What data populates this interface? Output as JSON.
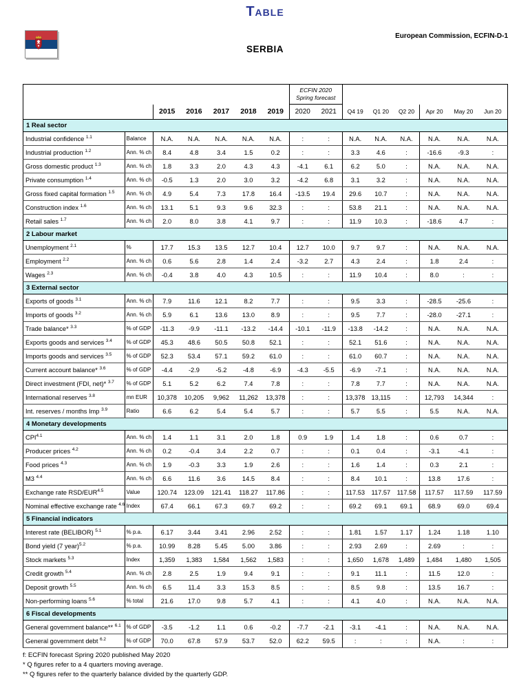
{
  "header": {
    "page_title": "TABLE",
    "organization": "European Commission, ECFIN-D-1",
    "country": "SERBIA"
  },
  "colors": {
    "title_blue": "#2B3896",
    "section_band": "#CCF2F3",
    "flag_red": "#C6363D",
    "flag_blue": "#12457E",
    "flag_white": "#FFFFFF"
  },
  "table": {
    "forecast_box": {
      "line1": "ECFIN 2020",
      "line2": "Spring forecast"
    },
    "columns": {
      "years": [
        "2015",
        "2016",
        "2017",
        "2018",
        "2019"
      ],
      "forecast_years": [
        "2020",
        "2021"
      ],
      "quarters": [
        "Q4 19",
        "Q1 20",
        "Q2 20"
      ],
      "months": [
        "Apr 20",
        "May 20",
        "Jun 20"
      ]
    },
    "sections": [
      {
        "title": "1  Real sector",
        "rows": [
          {
            "label": "Industrial confidence ",
            "sup": "1.1",
            "unit": "Balance",
            "values": [
              "N.A.",
              "N.A.",
              "N.A.",
              "N.A.",
              "N.A.",
              ":",
              ":",
              "N.A.",
              "N.A.",
              "N.A.",
              "N.A.",
              "N.A.",
              "N.A."
            ]
          },
          {
            "label": "Industrial production ",
            "sup": "1.2",
            "unit": "Ann. % ch",
            "values": [
              "8.4",
              "4.8",
              "3.4",
              "1.5",
              "0.2",
              ":",
              ":",
              "3.3",
              "4.6",
              ":",
              "-16.6",
              "-9.3",
              ":"
            ]
          },
          {
            "label": "Gross domestic product ",
            "sup": "1.3",
            "unit": "Ann. % ch",
            "values": [
              "1.8",
              "3.3",
              "2.0",
              "4.3",
              "4.3",
              "-4.1",
              "6.1",
              "6.2",
              "5.0",
              ":",
              "N.A.",
              "N.A.",
              "N.A."
            ]
          },
          {
            "label": "Private consumption ",
            "sup": "1.4",
            "unit": "Ann. % ch",
            "values": [
              "-0.5",
              "1.3",
              "2.0",
              "3.0",
              "3.2",
              "-4.2",
              "6.8",
              "3.1",
              "3.2",
              ":",
              "N.A.",
              "N.A.",
              "N.A."
            ]
          },
          {
            "label": "Gross fixed capital formation ",
            "sup": "1.5",
            "unit": "Ann. % ch",
            "values": [
              "4.9",
              "5.4",
              "7.3",
              "17.8",
              "16.4",
              "-13.5",
              "19.4",
              "29.6",
              "10.7",
              ":",
              "N.A.",
              "N.A.",
              "N.A."
            ]
          },
          {
            "label": "Construction index ",
            "sup": "1.6",
            "unit": "Ann. % ch",
            "values": [
              "13.1",
              "5.1",
              "9.3",
              "9.6",
              "32.3",
              ":",
              ":",
              "53.8",
              "21.1",
              ":",
              "N.A.",
              "N.A.",
              "N.A."
            ]
          },
          {
            "label": "Retail sales ",
            "sup": "1.7",
            "unit": "Ann. % ch",
            "values": [
              "2.0",
              "8.0",
              "3.8",
              "4.1",
              "9.7",
              ":",
              ":",
              "11.9",
              "10.3",
              ":",
              "-18.6",
              "4.7",
              ":"
            ]
          }
        ]
      },
      {
        "title": "2  Labour market",
        "rows": [
          {
            "label": "Unemployment ",
            "sup": "2.1",
            "unit": "%",
            "values": [
              "17.7",
              "15.3",
              "13.5",
              "12.7",
              "10.4",
              "12.7",
              "10.0",
              "9.7",
              "9.7",
              ":",
              "N.A.",
              "N.A.",
              "N.A."
            ]
          },
          {
            "label": "Employment ",
            "sup": "2.2",
            "unit": "Ann. % ch",
            "values": [
              "0.6",
              "5.6",
              "2.8",
              "1.4",
              "2.4",
              "-3.2",
              "2.7",
              "4.3",
              "2.4",
              ":",
              "1.8",
              "2.4",
              ":"
            ]
          },
          {
            "label": "Wages ",
            "sup": "2.3",
            "unit": "Ann. % ch",
            "values": [
              "-0.4",
              "3.8",
              "4.0",
              "4.3",
              "10.5",
              ":",
              ":",
              "11.9",
              "10.4",
              ":",
              "8.0",
              ":",
              ":"
            ]
          }
        ]
      },
      {
        "title": "3  External sector",
        "rows": [
          {
            "label": "Exports of goods ",
            "sup": "3.1",
            "unit": "Ann. % ch",
            "values": [
              "7.9",
              "11.6",
              "12.1",
              "8.2",
              "7.7",
              ":",
              ":",
              "9.5",
              "3.3",
              ":",
              "-28.5",
              "-25.6",
              ":"
            ]
          },
          {
            "label": "Imports of goods ",
            "sup": "3.2",
            "unit": "Ann. % ch",
            "values": [
              "5.9",
              "6.1",
              "13.6",
              "13.0",
              "8.9",
              ":",
              ":",
              "9.5",
              "7.7",
              ":",
              "-28.0",
              "-27.1",
              ":"
            ]
          },
          {
            "label": "Trade balance* ",
            "sup": "3.3",
            "unit": "% of GDP",
            "values": [
              "-11.3",
              "-9.9",
              "-11.1",
              "-13.2",
              "-14.4",
              "-10.1",
              "-11.9",
              "-13.8",
              "-14.2",
              ":",
              "N.A.",
              "N.A.",
              "N.A."
            ]
          },
          {
            "label": "Exports goods and services ",
            "sup": "3.4",
            "unit": "% of GDP",
            "values": [
              "45.3",
              "48.6",
              "50.5",
              "50.8",
              "52.1",
              ":",
              ":",
              "52.1",
              "51.6",
              ":",
              "N.A.",
              "N.A.",
              "N.A."
            ]
          },
          {
            "label": "Imports goods and services ",
            "sup": "3.5",
            "unit": "% of GDP",
            "values": [
              "52.3",
              "53.4",
              "57.1",
              "59.2",
              "61.0",
              ":",
              ":",
              "61.0",
              "60.7",
              ":",
              "N.A.",
              "N.A.",
              "N.A."
            ]
          },
          {
            "label": "Current account balance* ",
            "sup": "3.6",
            "unit": "% of GDP",
            "values": [
              "-4.4",
              "-2.9",
              "-5.2",
              "-4.8",
              "-6.9",
              "-4.3",
              "-5.5",
              "-6.9",
              "-7.1",
              ":",
              "N.A.",
              "N.A.",
              "N.A."
            ]
          },
          {
            "label": "Direct investment (FDI, net)* ",
            "sup": "3.7",
            "unit": "% of GDP",
            "values": [
              "5.1",
              "5.2",
              "6.2",
              "7.4",
              "7.8",
              ":",
              ":",
              "7.8",
              "7.7",
              ":",
              "N.A.",
              "N.A.",
              "N.A."
            ]
          },
          {
            "label": "International reserves ",
            "sup": "3.8",
            "unit": "mn EUR",
            "values": [
              "10,378",
              "10,205",
              "9,962",
              "11,262",
              "13,378",
              ":",
              ":",
              "13,378",
              "13,115",
              ":",
              "12,793",
              "14,344",
              ":"
            ]
          },
          {
            "label": "Int. reserves / months Imp ",
            "sup": "3.9",
            "unit": "Ratio",
            "values": [
              "6.6",
              "6.2",
              "5.4",
              "5.4",
              "5.7",
              ":",
              ":",
              "5.7",
              "5.5",
              ":",
              "5.5",
              "N.A.",
              "N.A."
            ]
          }
        ]
      },
      {
        "title": "4  Monetary developments",
        "rows": [
          {
            "label": "CPI",
            "sup": "4.1",
            "unit": "Ann. % ch",
            "values": [
              "1.4",
              "1.1",
              "3.1",
              "2.0",
              "1.8",
              "0.9",
              "1.9",
              "1.4",
              "1.8",
              ":",
              "0.6",
              "0.7",
              ":"
            ]
          },
          {
            "label": "Producer prices ",
            "sup": "4.2",
            "unit": "Ann. % ch",
            "values": [
              "0.2",
              "-0.4",
              "3.4",
              "2.2",
              "0.7",
              ":",
              ":",
              "0.1",
              "0.4",
              ":",
              "-3.1",
              "-4.1",
              ":"
            ]
          },
          {
            "label": "Food prices ",
            "sup": "4.3",
            "unit": "Ann. % ch",
            "values": [
              "1.9",
              "-0.3",
              "3.3",
              "1.9",
              "2.6",
              ":",
              ":",
              "1.6",
              "1.4",
              ":",
              "0.3",
              "2.1",
              ":"
            ]
          },
          {
            "label": "M3 ",
            "sup": "4.4",
            "unit": "Ann. % ch",
            "values": [
              "6.6",
              "11.6",
              "3.6",
              "14.5",
              "8.4",
              ":",
              ":",
              "8.4",
              "10.1",
              ":",
              "13.8",
              "17.6",
              ":"
            ]
          },
          {
            "label": "Exchange rate RSD/EUR",
            "sup": "4.5",
            "unit": "Value",
            "values": [
              "120.74",
              "123.09",
              "121.41",
              "118.27",
              "117.86",
              ":",
              ":",
              "117.53",
              "117.57",
              "117.58",
              "117.57",
              "117.59",
              "117.59"
            ]
          },
          {
            "label": "Nominal effective exchange rate ",
            "sup": "4.6",
            "unit": "Index",
            "values": [
              "67.4",
              "66.1",
              "67.3",
              "69.7",
              "69.2",
              ":",
              ":",
              "69.2",
              "69.1",
              "69.1",
              "68.9",
              "69.0",
              "69.4"
            ]
          }
        ]
      },
      {
        "title": "5  Financial indicators",
        "rows": [
          {
            "label": "Interest rate (BELIBOR) ",
            "sup": "5.1",
            "unit": "% p.a.",
            "values": [
              "6.17",
              "3.44",
              "3.41",
              "2.96",
              "2.52",
              ":",
              ":",
              "1.81",
              "1.57",
              "1.17",
              "1.24",
              "1.18",
              "1.10"
            ]
          },
          {
            "label": "Bond yield (7 year)",
            "sup": "5.2",
            "unit": "% p.a.",
            "values": [
              "10.99",
              "8.28",
              "5.45",
              "5.00",
              "3.86",
              ":",
              ":",
              "2.93",
              "2.69",
              ":",
              "2.69",
              ":",
              ":"
            ]
          },
          {
            "label": "Stock markets ",
            "sup": "5.3",
            "unit": "Index",
            "values": [
              "1,359",
              "1,383",
              "1,584",
              "1,562",
              "1,583",
              ":",
              ":",
              "1,650",
              "1,678",
              "1,489",
              "1,484",
              "1,480",
              "1,505"
            ]
          },
          {
            "label": "Credit growth ",
            "sup": "5.4",
            "unit": "Ann. % ch",
            "values": [
              "2.8",
              "2.5",
              "1.9",
              "9.4",
              "9.1",
              ":",
              ":",
              "9.1",
              "11.1",
              ":",
              "11.5",
              "12.0",
              ":"
            ]
          },
          {
            "label": "Deposit growth ",
            "sup": "5.5",
            "unit": "Ann. % ch",
            "values": [
              "6.5",
              "11.4",
              "3.3",
              "15.3",
              "8.5",
              ":",
              ":",
              "8.5",
              "9.8",
              ":",
              "13.5",
              "16.7",
              ":"
            ]
          },
          {
            "label": "Non-performing loans ",
            "sup": "5.6",
            "unit": "% total",
            "values": [
              "21.6",
              "17.0",
              "9.8",
              "5.7",
              "4.1",
              ":",
              ":",
              "4.1",
              "4.0",
              ":",
              "N.A.",
              "N.A.",
              "N.A."
            ]
          }
        ]
      },
      {
        "title": "6  Fiscal developments",
        "rows": [
          {
            "label": "General government balance** ",
            "sup": "6.1",
            "unit": "% of GDP",
            "values": [
              "-3.5",
              "-1.2",
              "1.1",
              "0.6",
              "-0.2",
              "-7.7",
              "-2.1",
              "-3.1",
              "-4.1",
              ":",
              "N.A.",
              "N.A.",
              "N.A."
            ]
          },
          {
            "label": "General government debt ",
            "sup": "6.2",
            "unit": "% of GDP",
            "values": [
              "70.0",
              "67.8",
              "57.9",
              "53.7",
              "52.0",
              "62.2",
              "59.5",
              ":",
              ":",
              ":",
              "N.A.",
              ":",
              ":"
            ]
          }
        ]
      }
    ]
  },
  "footnotes": [
    "f: ECFIN forecast Spring 2020 published May 2020",
    "* Q figures refer to a 4 quarters moving average.",
    "** Q figures refer to the quarterly balance divided by the quarterly GDP."
  ]
}
